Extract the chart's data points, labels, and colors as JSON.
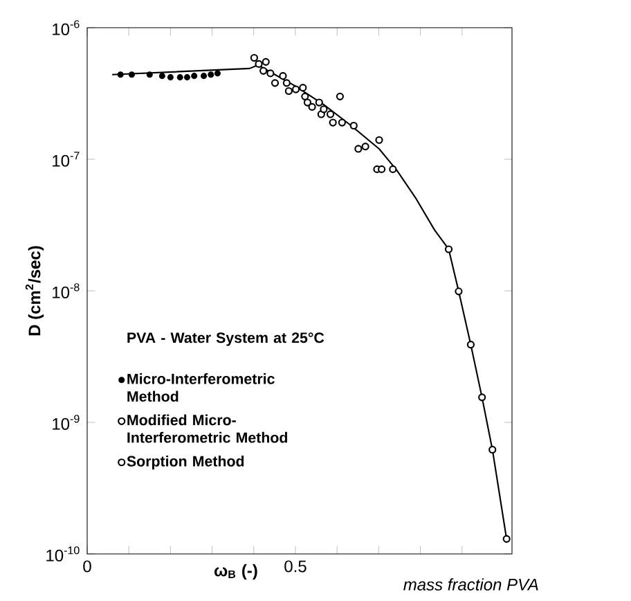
{
  "chart_data": {
    "type": "scatter",
    "xlabel": "ω$_{B}$ (-)",
    "ylabel": "D (cm$^{2}$/sec)",
    "legend_title": "PVA - Water System at 25°C",
    "annotations": [
      "mass fraction PVA"
    ],
    "log": "y",
    "legend": "left",
    "grid": false,
    "xlim": [
      0,
      1.02
    ],
    "ylim": [
      1e-10,
      1e-06
    ],
    "xticks": [
      0,
      {
        "value": 0.1,
        "label": null
      },
      {
        "value": 0.2,
        "label": null
      },
      {
        "value": 0.3,
        "label": null
      },
      {
        "value": 0.4,
        "label": null
      },
      0.5,
      {
        "value": 0.6,
        "label": null
      },
      {
        "value": 0.7,
        "label": null
      },
      {
        "value": 0.8,
        "label": null
      },
      {
        "value": 0.9,
        "label": null
      }
    ],
    "yticks": [
      {
        "value": 1e-10,
        "label": "10$^{-10}$"
      },
      {
        "value": 1e-09,
        "label": "10$^{-9}$"
      },
      {
        "value": 1e-08,
        "label": "10$^{-8}$"
      },
      {
        "value": 1e-07,
        "label": "10$^{-7}$"
      },
      {
        "value": 1e-06,
        "label": "10$^{-6}$"
      }
    ],
    "series": [
      {
        "name": "Micro-Interferometric Method",
        "color": "#000000",
        "marker": "circle",
        "x": [
          0.08,
          0.107,
          0.15,
          0.18,
          0.2,
          0.223,
          0.24,
          0.257,
          0.28,
          0.297,
          0.313
        ],
        "values": [
          4.4e-07,
          4.4e-07,
          4.4e-07,
          4.3e-07,
          4.2e-07,
          4.2e-07,
          4.2e-07,
          4.3e-07,
          4.3e-07,
          4.4e-07,
          4.5e-07
        ]
      },
      {
        "name": "Modified Micro-Interferometric Method",
        "color": "#000000",
        "marker": "circle",
        "x": [
          0.401,
          0.412,
          0.429,
          0.423,
          0.44,
          0.451,
          0.47,
          0.479,
          0.484,
          0.501,
          0.518,
          0.523,
          0.529,
          0.54,
          0.557,
          0.562,
          0.568,
          0.584,
          0.607,
          0.59,
          0.612,
          0.64,
          0.651,
          0.668,
          0.701,
          0.696,
          0.707,
          0.734
        ],
        "values": [
          5.9e-07,
          5.3e-07,
          5.5e-07,
          4.7e-07,
          4.5e-07,
          3.8e-07,
          4.3e-07,
          3.8e-07,
          3.3e-07,
          3.4e-07,
          3.5e-07,
          3e-07,
          2.7e-07,
          2.5e-07,
          2.7e-07,
          2.2e-07,
          2.4e-07,
          2.2e-07,
          3e-07,
          1.9e-07,
          1.9e-07,
          1.8e-07,
          1.2e-07,
          1.25e-07,
          1.4e-07,
          8.4e-08,
          8.4e-08,
          8.4e-08
        ]
      },
      {
        "name": "Sorption Method",
        "color": "#000000",
        "marker": "circle",
        "x": [
          0.868,
          0.892,
          0.921,
          0.948,
          0.973,
          1.007
        ],
        "values": [
          2.07e-08,
          9.9e-09,
          3.9e-09,
          1.55e-09,
          6.2e-10,
          1.3e-10
        ]
      },
      {
        "type": "line",
        "color": "#000000",
        "marker": "none",
        "line_style": "solid",
        "x": [
          0.06,
          0.39,
          0.41,
          0.5,
          0.568,
          0.634,
          0.701,
          0.744,
          0.79,
          0.834,
          0.868,
          0.892,
          0.921,
          0.948,
          0.973,
          1.007
        ],
        "values": [
          4.4e-07,
          4.9e-07,
          5.2e-07,
          3.6e-07,
          2.6e-07,
          1.8e-07,
          1.2e-07,
          8.2e-08,
          5e-08,
          2.9e-08,
          2.07e-08,
          9.9e-09,
          3.9e-09,
          1.55e-09,
          6.2e-10,
          1.3e-10
        ]
      }
    ]
  }
}
